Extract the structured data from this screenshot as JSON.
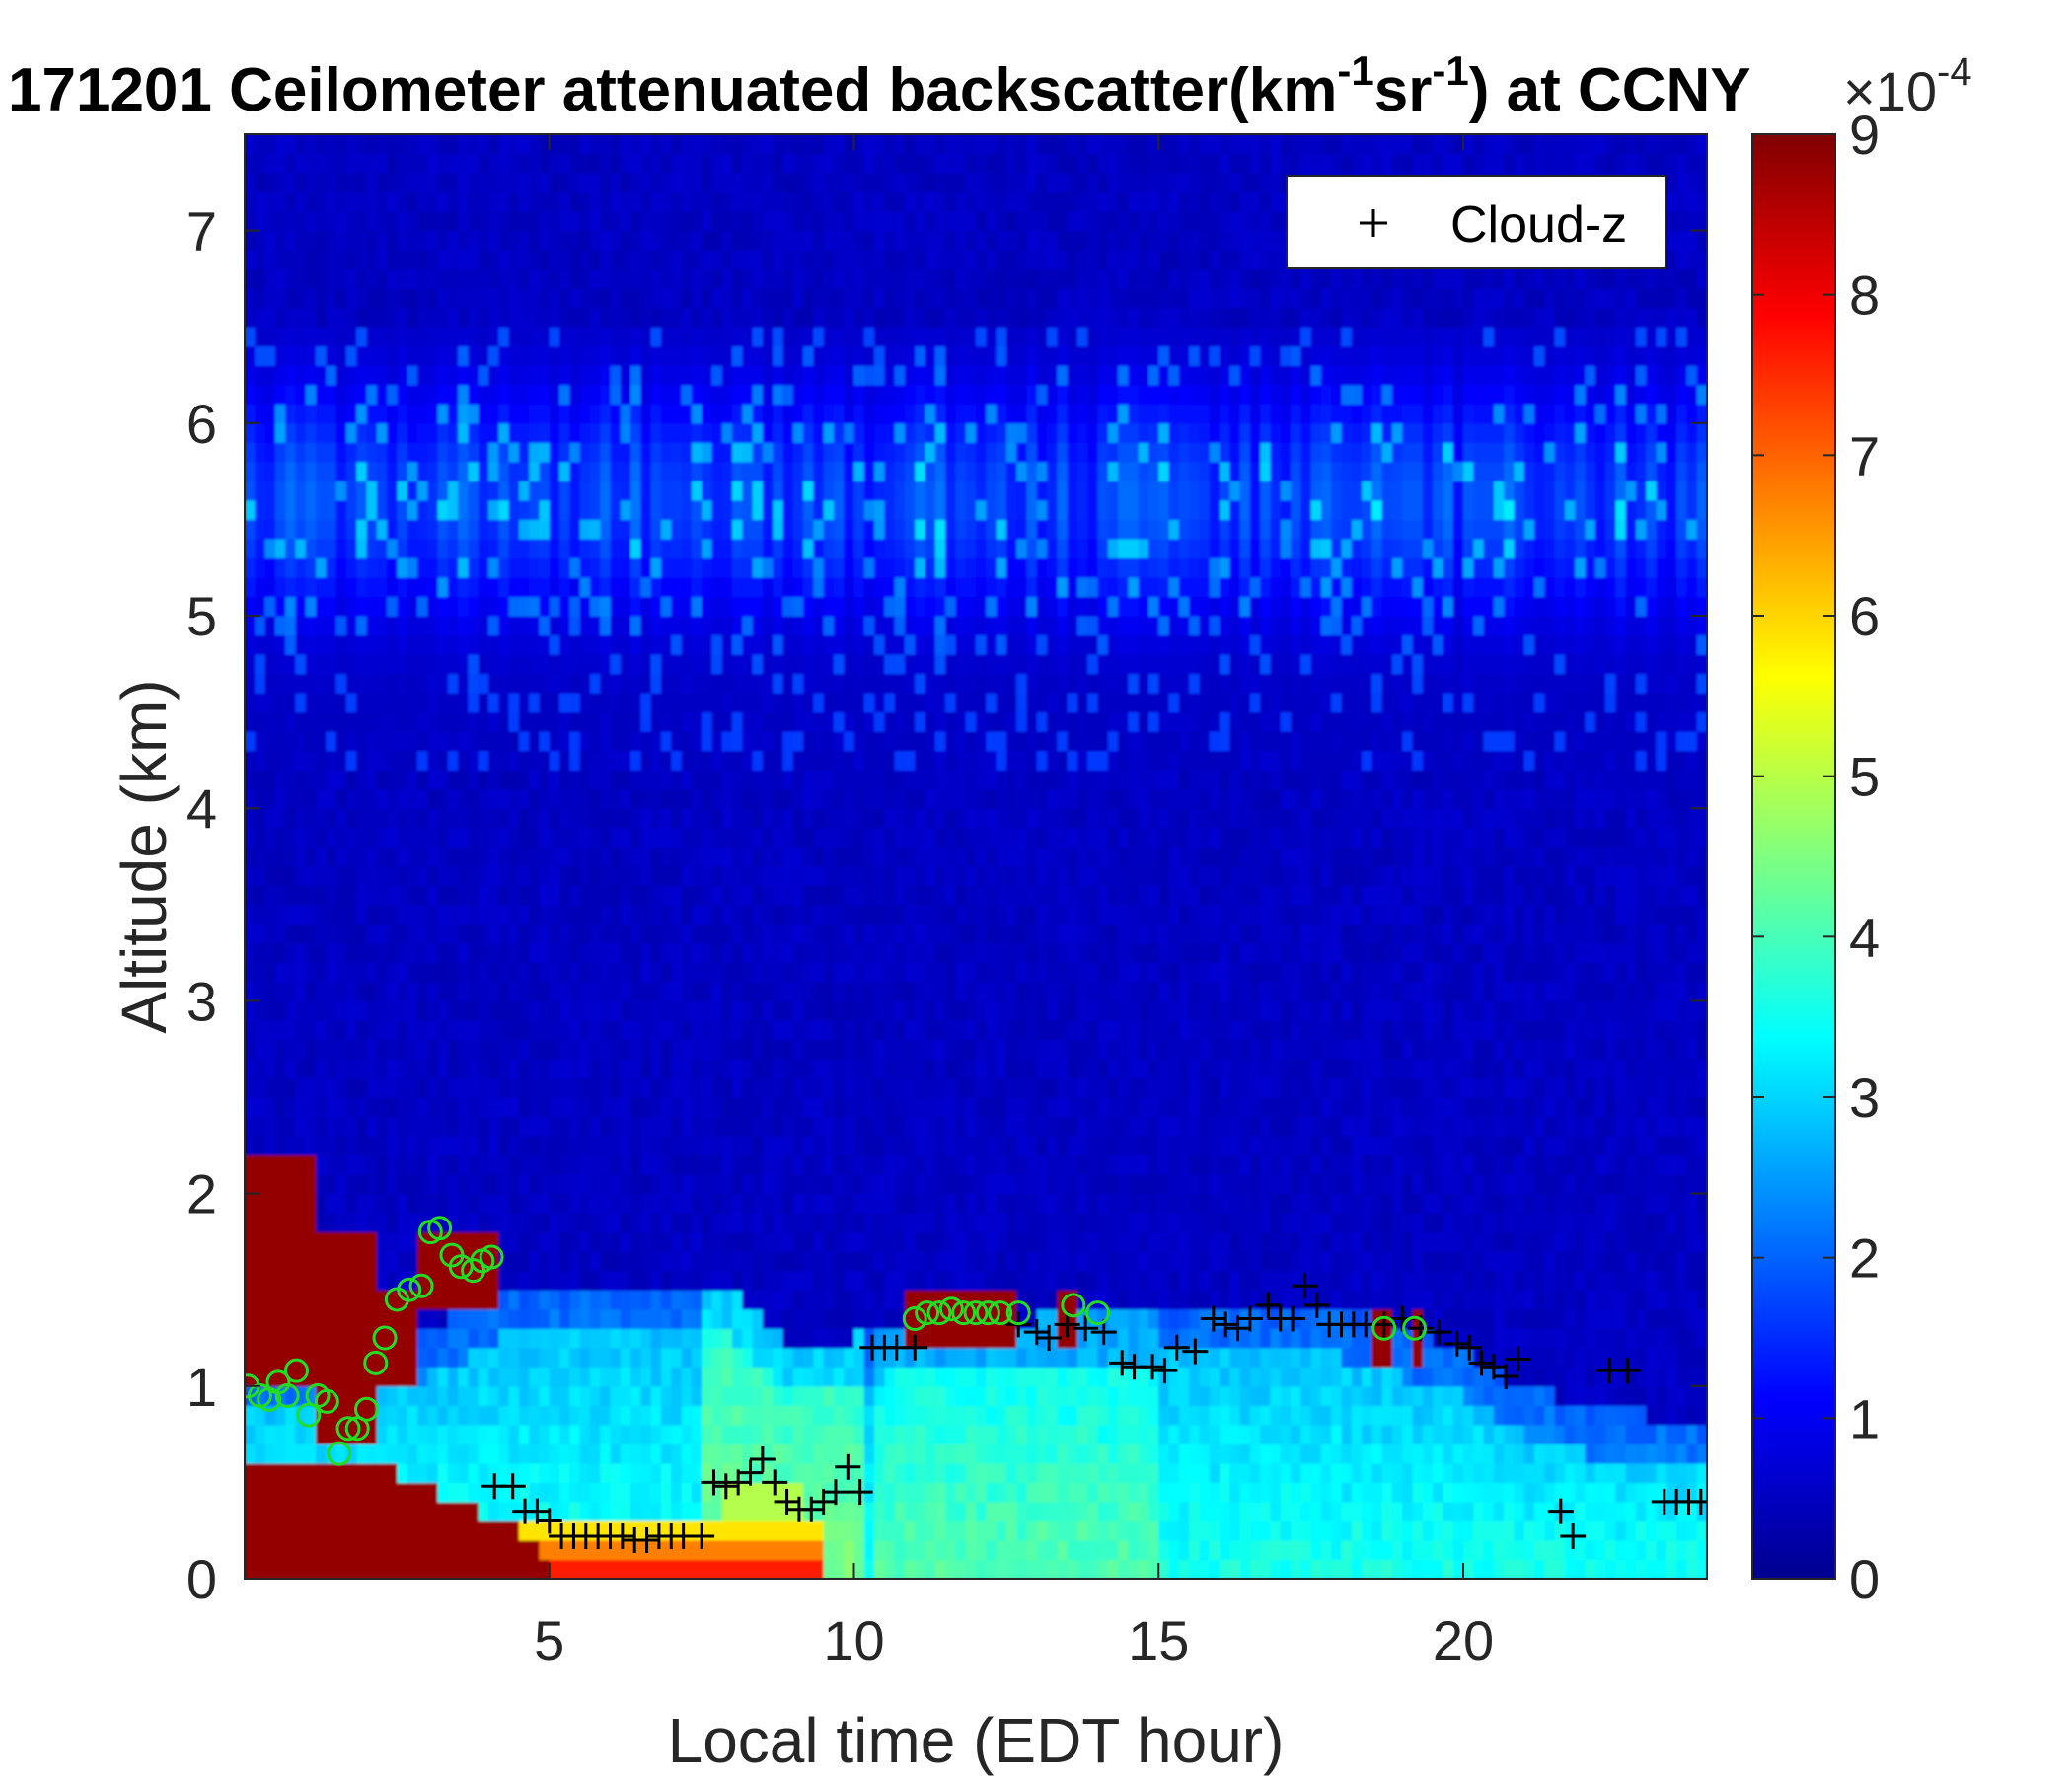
{
  "chart_data": {
    "type": "heatmap",
    "title": {
      "prefix": "171201 Ceilometer attenuated backscatter(km",
      "sup1": "-1",
      "mid": "sr",
      "sup2": "-1",
      "suffix": ") at CCNY"
    },
    "xlabel": "Local time (EDT hour)",
    "ylabel": "Altitude (km)",
    "xlim": [
      0,
      24
    ],
    "ylim": [
      0,
      7.5
    ],
    "xticks": [
      "5",
      "10",
      "15",
      "20"
    ],
    "yticks": [
      "0",
      "1",
      "2",
      "3",
      "4",
      "5",
      "6",
      "7"
    ],
    "colorbar": {
      "min": 0,
      "max": 9,
      "ticks": [
        "0",
        "1",
        "2",
        "3",
        "4",
        "5",
        "6",
        "7",
        "8",
        "9"
      ],
      "exponent_base": "×10",
      "exponent": "-4",
      "colormap": "jet"
    },
    "legend": {
      "entries": [
        {
          "marker": "+",
          "label": "Cloud-z"
        }
      ],
      "position": "top-right"
    },
    "series": [
      {
        "name": "Cloud-z",
        "marker": "+",
        "color": "#000000",
        "x": [
          4.1,
          4.4,
          4.6,
          4.8,
          5.0,
          5.2,
          5.4,
          5.6,
          5.8,
          6.0,
          6.2,
          6.4,
          6.6,
          6.8,
          7.0,
          7.2,
          7.5,
          7.7,
          7.9,
          8.1,
          8.3,
          8.5,
          8.7,
          8.9,
          9.1,
          9.3,
          9.5,
          9.7,
          9.9,
          10.1,
          10.3,
          10.5,
          10.7,
          11.0,
          12.7,
          13.0,
          13.2,
          13.5,
          13.8,
          14.1,
          14.4,
          14.6,
          14.9,
          15.1,
          15.3,
          15.6,
          15.9,
          16.1,
          16.3,
          16.5,
          16.8,
          17.0,
          17.2,
          17.4,
          17.6,
          17.8,
          18.0,
          18.2,
          18.4,
          18.7,
          19.0,
          19.3,
          19.6,
          19.9,
          20.1,
          20.3,
          20.5,
          20.7,
          20.9,
          21.6,
          21.8,
          22.4,
          22.7,
          23.3,
          23.5,
          23.7,
          23.9
        ],
        "y": [
          0.48,
          0.48,
          0.35,
          0.35,
          0.3,
          0.22,
          0.22,
          0.22,
          0.22,
          0.22,
          0.22,
          0.2,
          0.2,
          0.22,
          0.22,
          0.22,
          0.22,
          0.5,
          0.48,
          0.5,
          0.55,
          0.62,
          0.5,
          0.4,
          0.36,
          0.36,
          0.4,
          0.45,
          0.58,
          0.45,
          1.2,
          1.2,
          1.2,
          1.2,
          1.32,
          1.28,
          1.25,
          1.32,
          1.3,
          1.28,
          1.12,
          1.1,
          1.1,
          1.08,
          1.2,
          1.18,
          1.35,
          1.32,
          1.3,
          1.35,
          1.42,
          1.35,
          1.35,
          1.52,
          1.42,
          1.32,
          1.32,
          1.32,
          1.32,
          1.32,
          1.35,
          1.3,
          1.28,
          1.22,
          1.2,
          1.12,
          1.1,
          1.05,
          1.14,
          0.35,
          0.22,
          1.08,
          1.08,
          0.4,
          0.4,
          0.4,
          0.4
        ]
      },
      {
        "name": "",
        "marker": "o",
        "color": "#22dd22",
        "x": [
          0.05,
          0.25,
          0.4,
          0.55,
          0.7,
          0.85,
          1.05,
          1.2,
          1.35,
          1.55,
          1.7,
          1.85,
          2.0,
          2.15,
          2.3,
          2.5,
          2.7,
          2.9,
          3.05,
          3.2,
          3.4,
          3.55,
          3.75,
          3.9,
          4.05,
          11.0,
          11.2,
          11.4,
          11.6,
          11.8,
          12.0,
          12.2,
          12.4,
          12.7,
          13.6,
          14.0,
          18.7,
          19.2
        ],
        "y": [
          1.0,
          0.95,
          0.93,
          1.02,
          0.95,
          1.08,
          0.85,
          0.95,
          0.92,
          0.65,
          0.78,
          0.78,
          0.88,
          1.12,
          1.25,
          1.45,
          1.5,
          1.52,
          1.8,
          1.82,
          1.68,
          1.62,
          1.6,
          1.65,
          1.67,
          1.35,
          1.38,
          1.38,
          1.4,
          1.38,
          1.38,
          1.38,
          1.38,
          1.38,
          1.42,
          1.38,
          1.3,
          1.3
        ]
      }
    ]
  }
}
